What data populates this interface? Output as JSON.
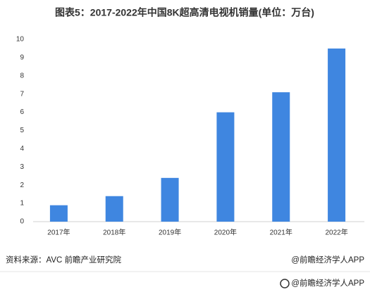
{
  "chart_data": {
    "type": "bar",
    "title": "图表5：2017-2022年中国8K超高清电视机销量(单位：万台)",
    "categories": [
      "2017年",
      "2018年",
      "2019年",
      "2020年",
      "2021年",
      "2022年"
    ],
    "values": [
      0.9,
      1.4,
      2.4,
      6.0,
      7.1,
      9.5
    ],
    "color": "#3f86e0",
    "ylim": [
      0,
      10
    ],
    "yticks": [
      0,
      1,
      2,
      3,
      4,
      5,
      6,
      7,
      8,
      9,
      10
    ],
    "grid": false,
    "source": "资料来源：AVC 前瞻产业研究院",
    "credit": "@前瞻经济学人APP",
    "footer": "@前瞻经济学人APP"
  }
}
